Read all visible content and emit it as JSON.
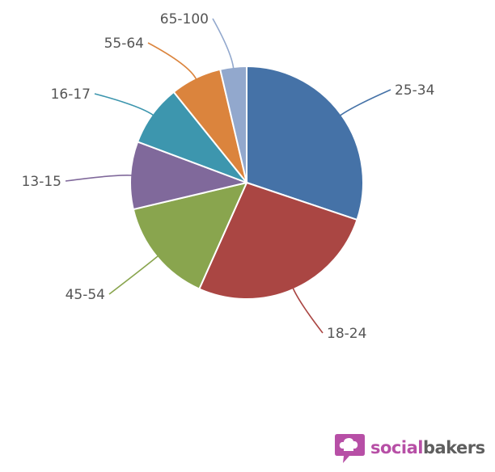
{
  "chart_data": {
    "type": "pie",
    "title": "",
    "start_angle_deg": 90,
    "direction": "clockwise",
    "slices": [
      {
        "label": "25-34",
        "value": 30.5,
        "color": "#4572a7"
      },
      {
        "label": "18-24",
        "value": 26.8,
        "color": "#aa4643"
      },
      {
        "label": "45-54",
        "value": 14.8,
        "color": "#89a54e"
      },
      {
        "label": "13-15",
        "value": 9.5,
        "color": "#80699b"
      },
      {
        "label": "16-17",
        "value": 8.6,
        "color": "#3d96ae"
      },
      {
        "label": "55-64",
        "value": 7.2,
        "color": "#db843d"
      },
      {
        "label": "65-100",
        "value": 3.7,
        "color": "#92a8cd"
      }
    ]
  },
  "brand": {
    "part_a": "social",
    "part_b": "bakers",
    "icon": "chat-bubble-chef-hat-icon",
    "icon_color": "#b74fa6"
  }
}
